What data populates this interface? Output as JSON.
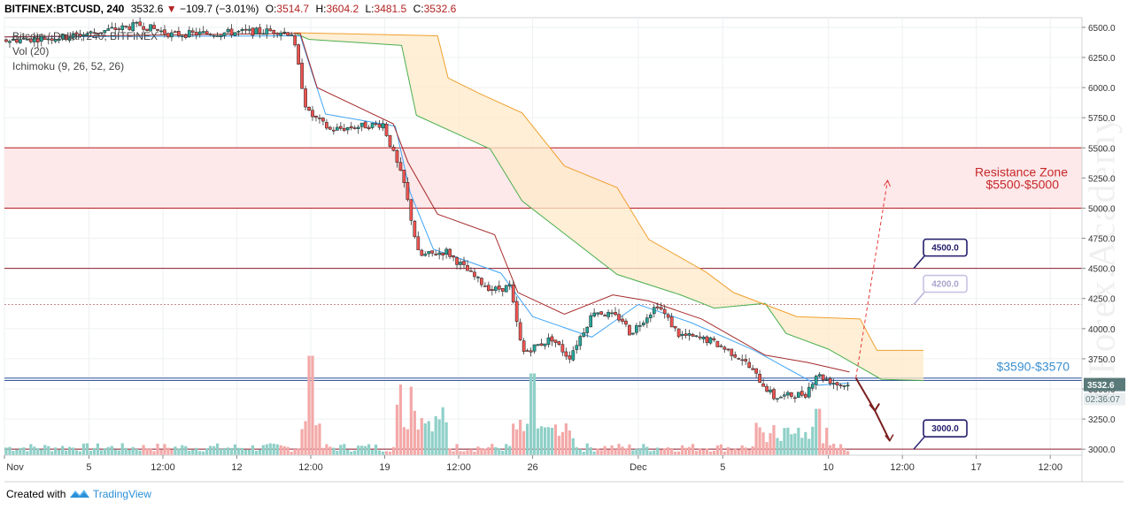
{
  "header": {
    "symbol": "BITFINEX:BTCUSD, 240",
    "last": "3532.6",
    "direction_glyph": "▼",
    "change": "−109.7 (−3.01%)",
    "o_label": "O:",
    "o_value": "3514.7",
    "h_label": "H:",
    "h_value": "3604.2",
    "l_label": "L:",
    "l_value": "3481.5",
    "c_label": "C:",
    "c_value": "3532.6"
  },
  "legend": {
    "main": "Bitcoin / Dollar, 240, BITFINEX",
    "vol": "Vol (20)",
    "ichimoku": "Ichimoku (9, 26, 52, 26)"
  },
  "footer": {
    "created_with": "Created with",
    "brand": "TradingView"
  },
  "watermark": "©Forex.Academy",
  "colors": {
    "up": "#26a69a",
    "down": "#ef5350",
    "resistance_fill": "#fde8ea",
    "resistance_line": "#b71c1c",
    "level_line": "#8b1a2b",
    "tenkan": "#42a5f5",
    "kijun": "#a52a2a",
    "senkou_a": "#4caf50",
    "senkou_b": "#f0a030",
    "cloud_fill": "#fde9c8",
    "box_border": "#231d6b",
    "price_tag": "#5a7a7a"
  },
  "chart_data": {
    "type": "candlestick",
    "title": "BITFINEX:BTCUSD, 240",
    "ylim": [
      2950,
      6580
    ],
    "y_ticks": [
      3000,
      3250,
      3500,
      3750,
      4000,
      4250,
      4500,
      4750,
      5000,
      5250,
      5500,
      5750,
      6000,
      6250,
      6500
    ],
    "y_tick_labels": [
      "3000.0",
      "3250.0",
      "3500.0",
      "3750.0",
      "4000.0",
      "4250.0",
      "4500.0",
      "4750.0",
      "5000.0",
      "5250.0",
      "5500.0",
      "5750.0",
      "6000.0",
      "6250.0",
      "6500.0"
    ],
    "x_start_date": "2018-11-01",
    "x_tick_labels": [
      {
        "day": 0,
        "label": "Nov"
      },
      {
        "day": 4,
        "label": "5"
      },
      {
        "day": 7.5,
        "label": "12:00"
      },
      {
        "day": 11,
        "label": "12"
      },
      {
        "day": 14.5,
        "label": "12:00"
      },
      {
        "day": 18,
        "label": "19"
      },
      {
        "day": 21.5,
        "label": "12:00"
      },
      {
        "day": 25,
        "label": "26"
      },
      {
        "day": 30,
        "label": "Dec"
      },
      {
        "day": 34,
        "label": "5"
      },
      {
        "day": 39,
        "label": "10"
      },
      {
        "day": 42.5,
        "label": "12:00"
      },
      {
        "day": 46,
        "label": "17"
      },
      {
        "day": 49.5,
        "label": "12:00"
      }
    ],
    "price_path": [
      [
        0,
        6390
      ],
      [
        3,
        6420
      ],
      [
        6.5,
        6520
      ],
      [
        8,
        6440
      ],
      [
        13,
        6470
      ],
      [
        13.7,
        6450
      ],
      [
        14.4,
        5800
      ],
      [
        15.5,
        5650
      ],
      [
        18,
        5700
      ],
      [
        19,
        5200
      ],
      [
        19.7,
        4600
      ],
      [
        21,
        4640
      ],
      [
        22.5,
        4400
      ],
      [
        23.2,
        4320
      ],
      [
        24,
        4350
      ],
      [
        24.6,
        3800
      ],
      [
        26,
        3920
      ],
      [
        26.8,
        3760
      ],
      [
        28,
        4150
      ],
      [
        29.3,
        4080
      ],
      [
        29.7,
        3960
      ],
      [
        31,
        4200
      ],
      [
        32,
        3950
      ],
      [
        33.5,
        3900
      ],
      [
        35,
        3750
      ],
      [
        36.5,
        3430
      ],
      [
        38,
        3460
      ],
      [
        38.5,
        3620
      ],
      [
        39.5,
        3540
      ],
      [
        40,
        3532.6
      ]
    ],
    "horizontal_levels": [
      {
        "price": 4500,
        "label": "4500.0"
      },
      {
        "price": 4200,
        "label": "4200.0"
      },
      {
        "price": 3000,
        "label": "3000.0"
      }
    ],
    "resistance_zone": {
      "from": 5000,
      "to": 5500,
      "label_line1": "Resistance Zone",
      "label_line2": "$5500-$5000"
    },
    "support_zone": {
      "from": 3570,
      "to": 3590,
      "label": "$3590-$3570"
    },
    "last_price_label": "3532.6",
    "countdown_label": "02:36:07",
    "forecast_up": {
      "from": [
        40.3,
        3590
      ],
      "to": [
        41.8,
        5230
      ]
    },
    "forecast_down": [
      [
        40.3,
        3590
      ],
      [
        41.2,
        3320
      ],
      [
        41.9,
        3070
      ]
    ],
    "cloud_a": [
      [
        13.7,
        6455
      ],
      [
        14.4,
        6400
      ],
      [
        18.8,
        6350
      ],
      [
        19.5,
        5770
      ],
      [
        23,
        5490
      ],
      [
        24.5,
        5060
      ],
      [
        29,
        4450
      ],
      [
        32,
        4280
      ],
      [
        33.6,
        4170
      ],
      [
        36,
        4210
      ],
      [
        37,
        3960
      ],
      [
        39,
        3830
      ],
      [
        41.5,
        3580
      ],
      [
        43.5,
        3570
      ]
    ],
    "cloud_b": [
      [
        13.7,
        6455
      ],
      [
        20.5,
        6430
      ],
      [
        21,
        6080
      ],
      [
        22.5,
        5950
      ],
      [
        24.5,
        5790
      ],
      [
        26.5,
        5350
      ],
      [
        29,
        5170
      ],
      [
        30.5,
        4740
      ],
      [
        33.2,
        4470
      ],
      [
        34.5,
        4300
      ],
      [
        37.5,
        4100
      ],
      [
        40.5,
        4080
      ],
      [
        41.3,
        3820
      ],
      [
        43.5,
        3820
      ]
    ],
    "tenkan": [
      [
        0,
        6420
      ],
      [
        14,
        6430
      ],
      [
        14.6,
        6100
      ],
      [
        15.2,
        5780
      ],
      [
        18.5,
        5680
      ],
      [
        19.2,
        5130
      ],
      [
        20.3,
        4660
      ],
      [
        23.5,
        4460
      ],
      [
        25,
        4100
      ],
      [
        27.8,
        3930
      ],
      [
        30,
        4200
      ],
      [
        32.5,
        4050
      ],
      [
        35.5,
        3820
      ],
      [
        38.5,
        3530
      ],
      [
        40,
        3550
      ]
    ],
    "kijun": [
      [
        0,
        6420
      ],
      [
        14,
        6450
      ],
      [
        14.8,
        6000
      ],
      [
        18.4,
        5700
      ],
      [
        19.1,
        5380
      ],
      [
        20.5,
        4950
      ],
      [
        23.2,
        4780
      ],
      [
        24.3,
        4300
      ],
      [
        26.5,
        4120
      ],
      [
        28.8,
        4280
      ],
      [
        30.5,
        4230
      ],
      [
        33,
        4080
      ],
      [
        36,
        3780
      ],
      [
        38,
        3720
      ],
      [
        40,
        3640
      ]
    ],
    "volume_spikes": [
      [
        14.5,
        0.9
      ],
      [
        25,
        0.74
      ],
      [
        18.8,
        0.64
      ],
      [
        19.2,
        0.62
      ],
      [
        38.5,
        0.42
      ]
    ]
  }
}
